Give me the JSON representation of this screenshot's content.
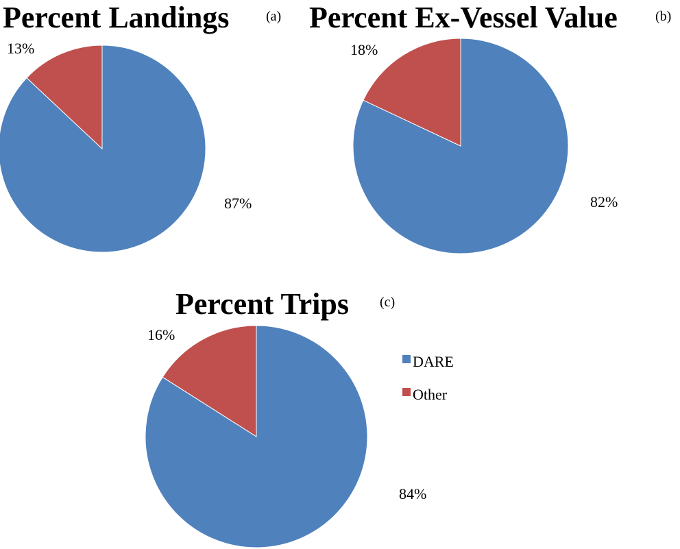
{
  "chart_data": [
    {
      "type": "pie",
      "title": "Percent Landings",
      "panel": "(a)",
      "categories": [
        "DARE",
        "Other"
      ],
      "values": [
        87,
        13
      ],
      "value_labels": [
        "87%",
        "13%"
      ]
    },
    {
      "type": "pie",
      "title": "Percent Ex-Vessel Value",
      "panel": "(b)",
      "categories": [
        "DARE",
        "Other"
      ],
      "values": [
        82,
        18
      ],
      "value_labels": [
        "82%",
        "18%"
      ]
    },
    {
      "type": "pie",
      "title": "Percent Trips",
      "panel": "(c)",
      "categories": [
        "DARE",
        "Other"
      ],
      "values": [
        84,
        16
      ],
      "value_labels": [
        "84%",
        "16%"
      ]
    }
  ],
  "legend": {
    "placement": "right of chart (c)",
    "items": [
      {
        "label": "DARE",
        "color": "#4f81bd"
      },
      {
        "label": "Other",
        "color": "#c0504d"
      }
    ]
  },
  "colors": {
    "DARE": "#4f81bd",
    "Other": "#c0504d"
  }
}
